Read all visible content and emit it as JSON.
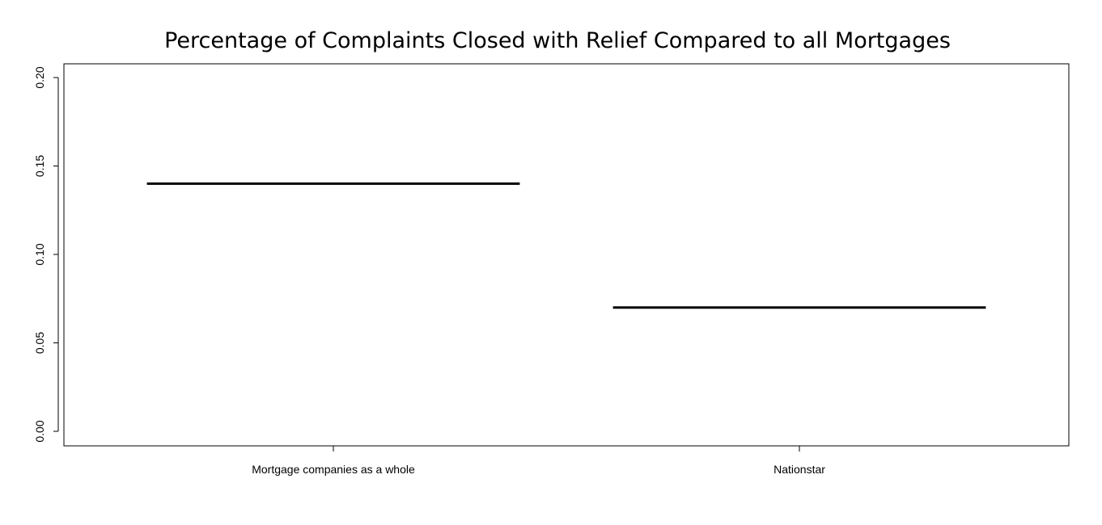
{
  "chart_data": {
    "type": "bar",
    "title": "Percentage of Complaints Closed with Relief Compared to all Mortgages",
    "xlabel": "",
    "ylabel": "",
    "categories": [
      "Mortgage companies as a whole",
      "Nationstar"
    ],
    "values": [
      0.14,
      0.07
    ],
    "ylim": [
      0,
      0.2
    ],
    "y_ticks": [
      "0.00",
      "0.05",
      "0.10",
      "0.15",
      "0.20"
    ],
    "grid": false,
    "legend": "none",
    "colors": {
      "mark": "#000000",
      "axis": "#000000",
      "background": "#ffffff"
    }
  }
}
